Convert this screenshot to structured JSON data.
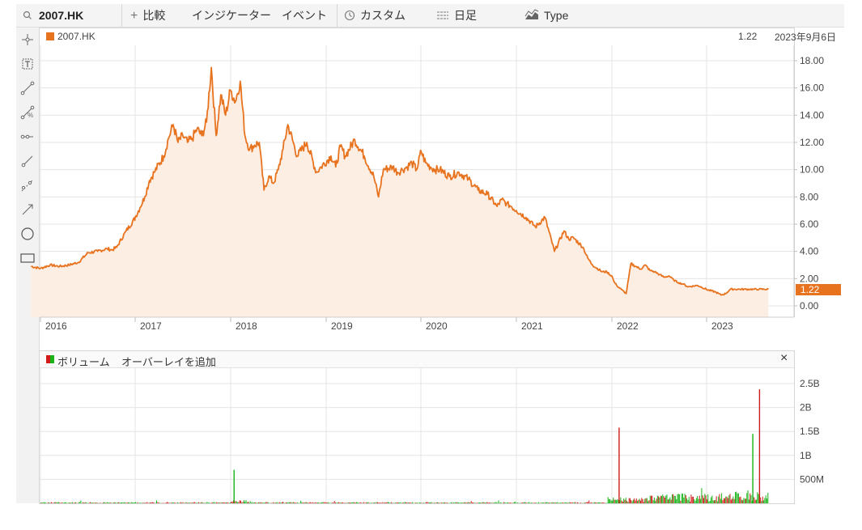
{
  "toolbar": {
    "search_icon": "search-icon",
    "symbol": "2007.HK",
    "compare_label": "比較",
    "indicator_label": "インジケーター",
    "event_label": "イベント",
    "custom_label": "カスタム",
    "interval_label": "日足",
    "type_label": "Type"
  },
  "chart_header": {
    "series_name": "2007.HK",
    "last_value": "1.22",
    "date": "2023年9月6日"
  },
  "volume_panel": {
    "title": "ボリューム",
    "overlay_label": "オーバーレイを追加",
    "close_symbol": "×"
  },
  "colors": {
    "accent": "#e8731f",
    "area_fill": "#fdeee3",
    "volume_up": "#17b317",
    "volume_down": "#d31a1a",
    "grid": "#e4e4e4"
  },
  "chart_data": [
    {
      "type": "area",
      "series": [
        {
          "name": "2007.HK"
        }
      ],
      "x_tick_labels": [
        "2016",
        "2017",
        "2018",
        "2019",
        "2020",
        "2021",
        "2022",
        "2023"
      ],
      "y_tick_labels": [
        "18.00",
        "16.00",
        "14.00",
        "12.00",
        "10.00",
        "8.00",
        "6.00",
        "4.00",
        "2.00",
        "0.00"
      ],
      "ylim": [
        0,
        18.2
      ],
      "last_price_label": "1.22",
      "grid": true,
      "x": [
        2015.9,
        2016.0,
        2016.1,
        2016.2,
        2016.3,
        2016.4,
        2016.5,
        2016.6,
        2016.7,
        2016.75,
        2016.8,
        2016.9,
        2017.0,
        2017.05,
        2017.1,
        2017.15,
        2017.2,
        2017.3,
        2017.35,
        2017.4,
        2017.45,
        2017.5,
        2017.55,
        2017.6,
        2017.65,
        2017.7,
        2017.75,
        2017.8,
        2017.85,
        2017.9,
        2017.95,
        2018.0,
        2018.05,
        2018.1,
        2018.15,
        2018.2,
        2018.25,
        2018.3,
        2018.35,
        2018.4,
        2018.45,
        2018.5,
        2018.55,
        2018.6,
        2018.7,
        2018.8,
        2018.9,
        2018.95,
        2019.05,
        2019.1,
        2019.15,
        2019.2,
        2019.3,
        2019.4,
        2019.5,
        2019.55,
        2019.6,
        2019.7,
        2019.75,
        2019.8,
        2019.85,
        2019.9,
        2019.95,
        2020.0,
        2020.05,
        2020.1,
        2020.15,
        2020.2,
        2020.3,
        2020.4,
        2020.5,
        2020.6,
        2020.7,
        2020.8,
        2020.85,
        2020.9,
        2020.95,
        2021.0,
        2021.1,
        2021.2,
        2021.3,
        2021.4,
        2021.5,
        2021.55,
        2021.6,
        2021.7,
        2021.75,
        2021.8,
        2021.9,
        2021.95,
        2022.0,
        2022.02,
        2022.05,
        2022.1,
        2022.15,
        2022.2,
        2022.25,
        2022.3,
        2022.35,
        2022.4,
        2022.45,
        2022.5,
        2022.55,
        2022.6,
        2022.65,
        2022.7,
        2022.75,
        2022.8,
        2022.9,
        2023.0,
        2023.1,
        2023.15,
        2023.2,
        2023.25,
        2023.3,
        2023.35,
        2023.4,
        2023.45,
        2023.5,
        2023.55,
        2023.6,
        2023.65
      ],
      "y": [
        2.9,
        2.75,
        3.0,
        2.9,
        3.0,
        3.2,
        3.9,
        4.0,
        4.2,
        4.1,
        4.3,
        5.5,
        6.5,
        7.2,
        8.0,
        9.2,
        9.8,
        11.0,
        12.3,
        13.3,
        12.0,
        12.5,
        12.0,
        12.3,
        13.0,
        12.5,
        13.5,
        17.5,
        12.5,
        15.5,
        14.0,
        15.8,
        15.0,
        16.5,
        12.5,
        11.5,
        11.8,
        12.0,
        8.5,
        9.5,
        9.0,
        10.0,
        11.5,
        13.3,
        11.0,
        12.0,
        9.8,
        10.2,
        11.0,
        10.2,
        11.7,
        11.0,
        12.2,
        11.0,
        9.5,
        8.0,
        10.0,
        10.2,
        9.8,
        10.0,
        10.2,
        10.5,
        10.0,
        11.4,
        10.5,
        10.2,
        10.0,
        10.0,
        9.5,
        9.8,
        9.3,
        8.5,
        8.2,
        7.3,
        7.8,
        7.5,
        7.3,
        7.0,
        6.5,
        5.8,
        6.5,
        4.0,
        5.5,
        4.9,
        5.0,
        4.3,
        3.5,
        3.0,
        2.5,
        2.5,
        2.2,
        1.8,
        1.5,
        1.2,
        0.9,
        3.1,
        2.9,
        2.7,
        3.0,
        2.6,
        2.5,
        2.3,
        2.1,
        2.2,
        1.9,
        1.7,
        1.6,
        1.4,
        1.5,
        1.2,
        1.0,
        0.8,
        0.9,
        1.22,
        1.22,
        1.22,
        1.22,
        1.22,
        1.22,
        1.22,
        1.22,
        1.22
      ]
    },
    {
      "type": "bar",
      "title": "ボリューム",
      "y_tick_labels": [
        "2.5B",
        "2B",
        "1.5B",
        "1B",
        "500M"
      ],
      "ylim": [
        0,
        2.65
      ],
      "notable_spikes": [
        {
          "x": 2018.03,
          "value": 0.7,
          "direction": "up"
        },
        {
          "x": 2022.07,
          "value": 1.58,
          "direction": "down"
        },
        {
          "x": 2023.48,
          "value": 1.45,
          "direction": "up"
        },
        {
          "x": 2023.55,
          "value": 2.38,
          "direction": "down"
        }
      ]
    }
  ]
}
